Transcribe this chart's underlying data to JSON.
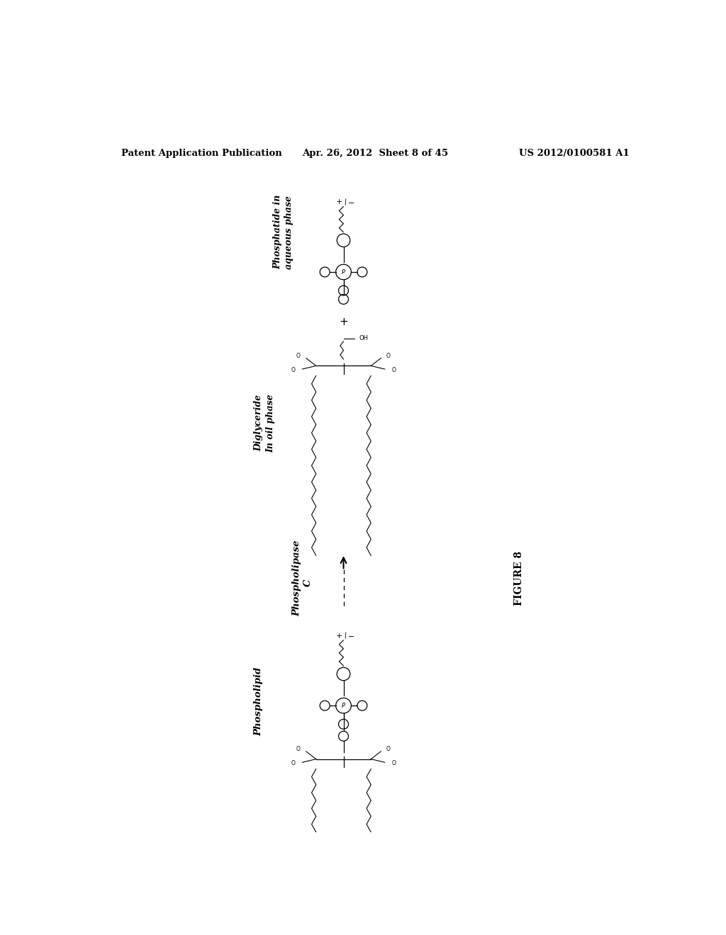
{
  "bg_color": "#ffffff",
  "text_color": "#000000",
  "header_left": "Patent Application Publication",
  "header_mid": "Apr. 26, 2012  Sheet 8 of 45",
  "header_right": "US 2012/0100581 A1",
  "figure_label": "FIGURE 8",
  "label_phosphatide_1": "Phosphatide in",
  "label_phosphatide_2": "aqueous phase",
  "label_diglyceride_1": "Diglyceride",
  "label_diglyceride_2": "In oil phase",
  "label_phospholipid": "Phospholipid",
  "label_plipase_1": "Phospholipase",
  "label_plipase_2": "C"
}
